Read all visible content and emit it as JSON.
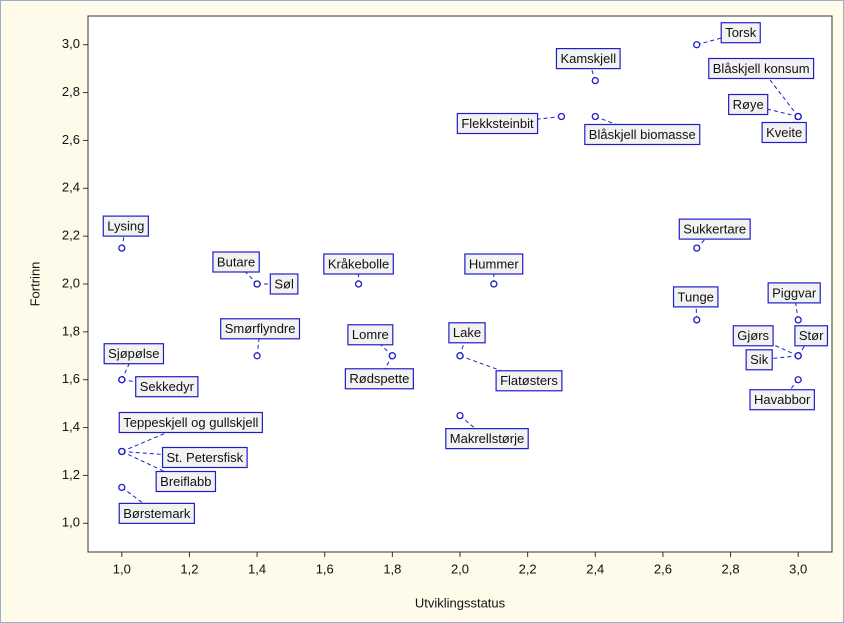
{
  "chart_data": {
    "type": "scatter",
    "xlabel": "Utviklingsstatus",
    "ylabel": "Fortrinn",
    "labels": [
      "Torsk",
      "Kamskjell",
      "Blåskjell konsum",
      "Røye",
      "Kveite",
      "Flekksteinbit",
      "Blåskjell biomasse",
      "Lysing",
      "Sukkertare",
      "Butare",
      "Søl",
      "Kråkebolle",
      "Hummer",
      "Tunge",
      "Piggvar",
      "Smørflyndre",
      "Lomre",
      "Rødspette",
      "Lake",
      "Flatøsters",
      "Gjørs",
      "Stør",
      "Sik",
      "Sjøpølse",
      "Sekkedyr",
      "Havabbor",
      "Makrellstørje",
      "Teppeskjell og gullskjell",
      "St. Petersfisk",
      "Breiflabb",
      "Børstemark"
    ],
    "x": [
      2.7,
      2.4,
      3.0,
      3.0,
      3.0,
      2.3,
      2.4,
      1.0,
      2.7,
      1.4,
      1.4,
      1.7,
      2.1,
      2.7,
      3.0,
      1.4,
      1.8,
      1.8,
      2.0,
      2.0,
      3.0,
      3.0,
      3.0,
      1.0,
      1.0,
      3.0,
      2.0,
      1.0,
      1.0,
      1.0,
      1.0
    ],
    "values": [
      3.0,
      2.85,
      2.7,
      2.7,
      2.7,
      2.7,
      2.7,
      2.15,
      2.15,
      2.0,
      2.0,
      2.0,
      2.0,
      1.85,
      1.85,
      1.7,
      1.7,
      1.7,
      1.7,
      1.7,
      1.7,
      1.7,
      1.7,
      1.6,
      1.6,
      1.6,
      1.45,
      1.3,
      1.3,
      1.3,
      1.15
    ],
    "color": "#1f1fc8",
    "xlim": [
      0.9,
      3.1
    ],
    "ylim": [
      0.88,
      3.12
    ],
    "xticks": [
      {
        "value": 1.0,
        "label": "1,0"
      },
      {
        "value": 1.2,
        "label": "1,2"
      },
      {
        "value": 1.4,
        "label": "1,4"
      },
      {
        "value": 1.6,
        "label": "1,6"
      },
      {
        "value": 1.8,
        "label": "1,8"
      },
      {
        "value": 2.0,
        "label": "2,0"
      },
      {
        "value": 2.2,
        "label": "2,2"
      },
      {
        "value": 2.4,
        "label": "2,4"
      },
      {
        "value": 2.6,
        "label": "2,6"
      },
      {
        "value": 2.8,
        "label": "2,8"
      },
      {
        "value": 3.0,
        "label": "3,0"
      }
    ],
    "yticks": [
      {
        "value": 1.0,
        "label": "1,0"
      },
      {
        "value": 1.2,
        "label": "1,2"
      },
      {
        "value": 1.4,
        "label": "1,4"
      },
      {
        "value": 1.6,
        "label": "1,6"
      },
      {
        "value": 1.8,
        "label": "1,8"
      },
      {
        "value": 2.0,
        "label": "2,0"
      },
      {
        "value": 2.2,
        "label": "2,2"
      },
      {
        "value": 2.4,
        "label": "2,4"
      },
      {
        "value": 2.6,
        "label": "2,6"
      },
      {
        "value": 2.8,
        "label": "2,8"
      },
      {
        "value": 3.0,
        "label": "3,0"
      }
    ],
    "grid": false
  }
}
